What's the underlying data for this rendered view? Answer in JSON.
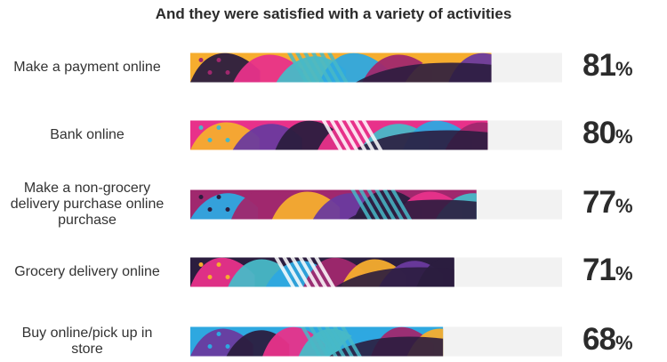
{
  "chart_data": {
    "type": "bar",
    "orientation": "horizontal",
    "title": "And they were satisfied with a variety of activities",
    "categories": [
      "Make a payment online",
      "Bank online",
      "Make a non-grocery delivery purchase online purchase",
      "Grocery delivery online",
      "Buy online/pick up in store"
    ],
    "category_lines": [
      [
        "Make a payment online"
      ],
      [
        "Bank online"
      ],
      [
        "Make a non-grocery",
        "delivery purchase online",
        "purchase"
      ],
      [
        "Grocery delivery online"
      ],
      [
        "Buy online/pick up in",
        "store"
      ]
    ],
    "values": [
      81,
      80,
      77,
      71,
      68
    ],
    "value_suffix": "%",
    "xlim": [
      0,
      100
    ],
    "legend": "none",
    "grid": false
  },
  "colors": {
    "track": "#f2f2f2",
    "palette": [
      "#2b1d3f",
      "#f6ad2e",
      "#2ea8e0",
      "#e8318a",
      "#6a3a9e",
      "#a0286e",
      "#48b9c7",
      "#ffffff"
    ]
  }
}
